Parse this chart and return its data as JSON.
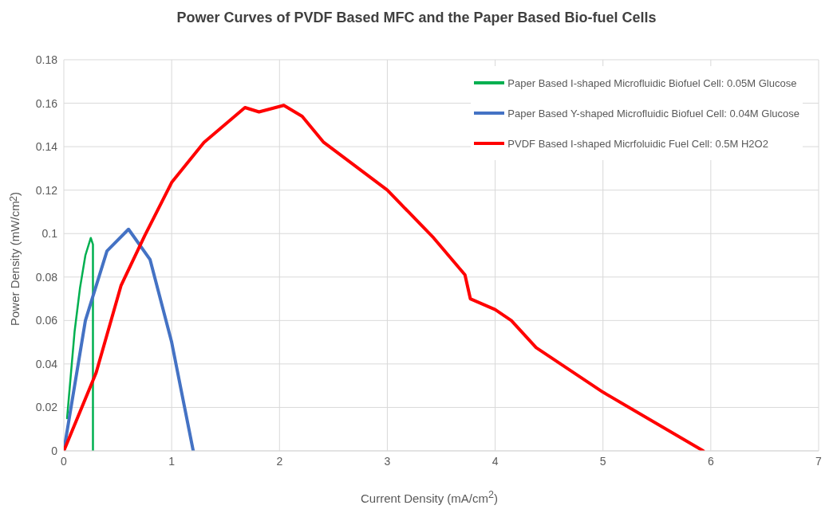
{
  "chart_data": {
    "type": "line",
    "title": "Power Curves of PVDF Based MFC and the Paper Based Bio-fuel Cells",
    "xlabel": "Current Density (mA/cm$^{2}$)",
    "ylabel": "Power Density (mW/cm$^{2}$)",
    "xlim": [
      0,
      7
    ],
    "xticks": [
      0,
      1,
      2,
      3,
      4,
      5,
      6,
      7
    ],
    "ylim": [
      0,
      0.18
    ],
    "yticks": [
      0,
      0.02,
      0.04,
      0.06,
      0.08,
      0.1,
      0.12,
      0.14,
      0.16,
      0.18
    ],
    "grid": true,
    "legend": "top right",
    "marker": "none",
    "line_style": "solid",
    "series": [
      {
        "name": "Paper Based I-shaped Microfluidic Biofuel Cell: 0.05M Glucose",
        "color": "#00b050",
        "x": [
          0.03,
          0.1,
          0.15,
          0.2,
          0.25,
          0.27,
          0.27,
          0.27
        ],
        "values": [
          0.015,
          0.055,
          0.075,
          0.09,
          0.098,
          0.095,
          0.05,
          0
        ]
      },
      {
        "name": "Paper Based Y-shaped Microfluidic Biofuel Cell: 0.04M Glucose",
        "color": "#4472c4",
        "x": [
          0,
          0.2,
          0.4,
          0.6,
          0.8,
          1.0,
          1.2
        ],
        "values": [
          0,
          0.06,
          0.092,
          0.102,
          0.088,
          0.05,
          0
        ]
      },
      {
        "name": "PVDF Based I-shaped Micrfoluidic Fuel Cell: 0.5M H2O2",
        "color": "#ff0000",
        "x": [
          0,
          0.3,
          0.53,
          0.75,
          1.0,
          1.3,
          1.68,
          1.81,
          2.04,
          2.21,
          2.41,
          3.0,
          3.43,
          3.72,
          3.77,
          4.0,
          4.15,
          4.38,
          5.0,
          5.93
        ],
        "values": [
          0,
          0.036,
          0.076,
          0.099,
          0.1235,
          0.142,
          0.158,
          0.156,
          0.159,
          0.154,
          0.142,
          0.12,
          0.098,
          0.081,
          0.07,
          0.065,
          0.06,
          0.0475,
          0.027,
          0
        ]
      }
    ]
  }
}
